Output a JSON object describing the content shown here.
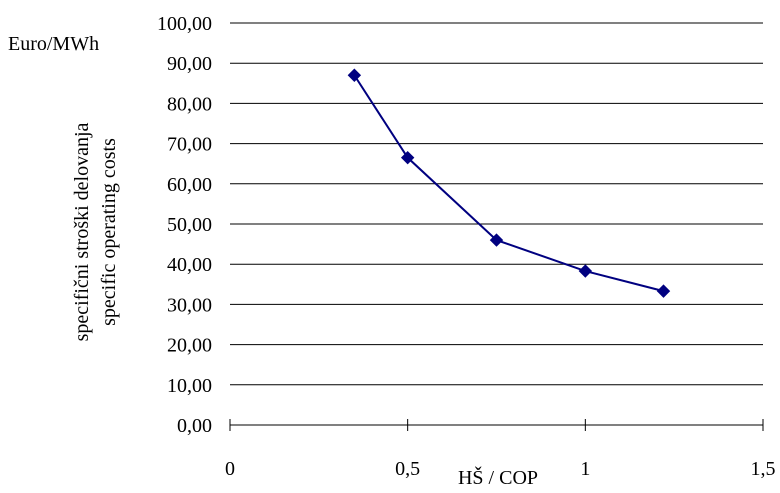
{
  "chart_data": {
    "type": "line",
    "unit_label": "Euro/MWh",
    "ylabel_lines": [
      "specifični stroški delovanja",
      "specific operating costs"
    ],
    "xlabel": "HŠ / COP",
    "xlim": [
      0,
      1.5
    ],
    "ylim": [
      0,
      100
    ],
    "x_ticks": [
      0,
      0.5,
      1,
      1.5
    ],
    "x_tick_labels": [
      "0",
      "0,5",
      "1",
      "1,5"
    ],
    "y_ticks": [
      0,
      10,
      20,
      30,
      40,
      50,
      60,
      70,
      80,
      90,
      100
    ],
    "y_tick_labels": [
      "0,00",
      "10,00",
      "20,00",
      "30,00",
      "40,00",
      "50,00",
      "60,00",
      "70,00",
      "80,00",
      "90,00",
      "100,00"
    ],
    "grid": "horizontal",
    "series": [
      {
        "marker": "diamond",
        "color": "#000080",
        "points": [
          {
            "x": 0.35,
            "y": 87.0
          },
          {
            "x": 0.5,
            "y": 66.5
          },
          {
            "x": 0.75,
            "y": 46.0
          },
          {
            "x": 1.0,
            "y": 38.3
          },
          {
            "x": 1.22,
            "y": 33.3
          }
        ]
      }
    ]
  }
}
